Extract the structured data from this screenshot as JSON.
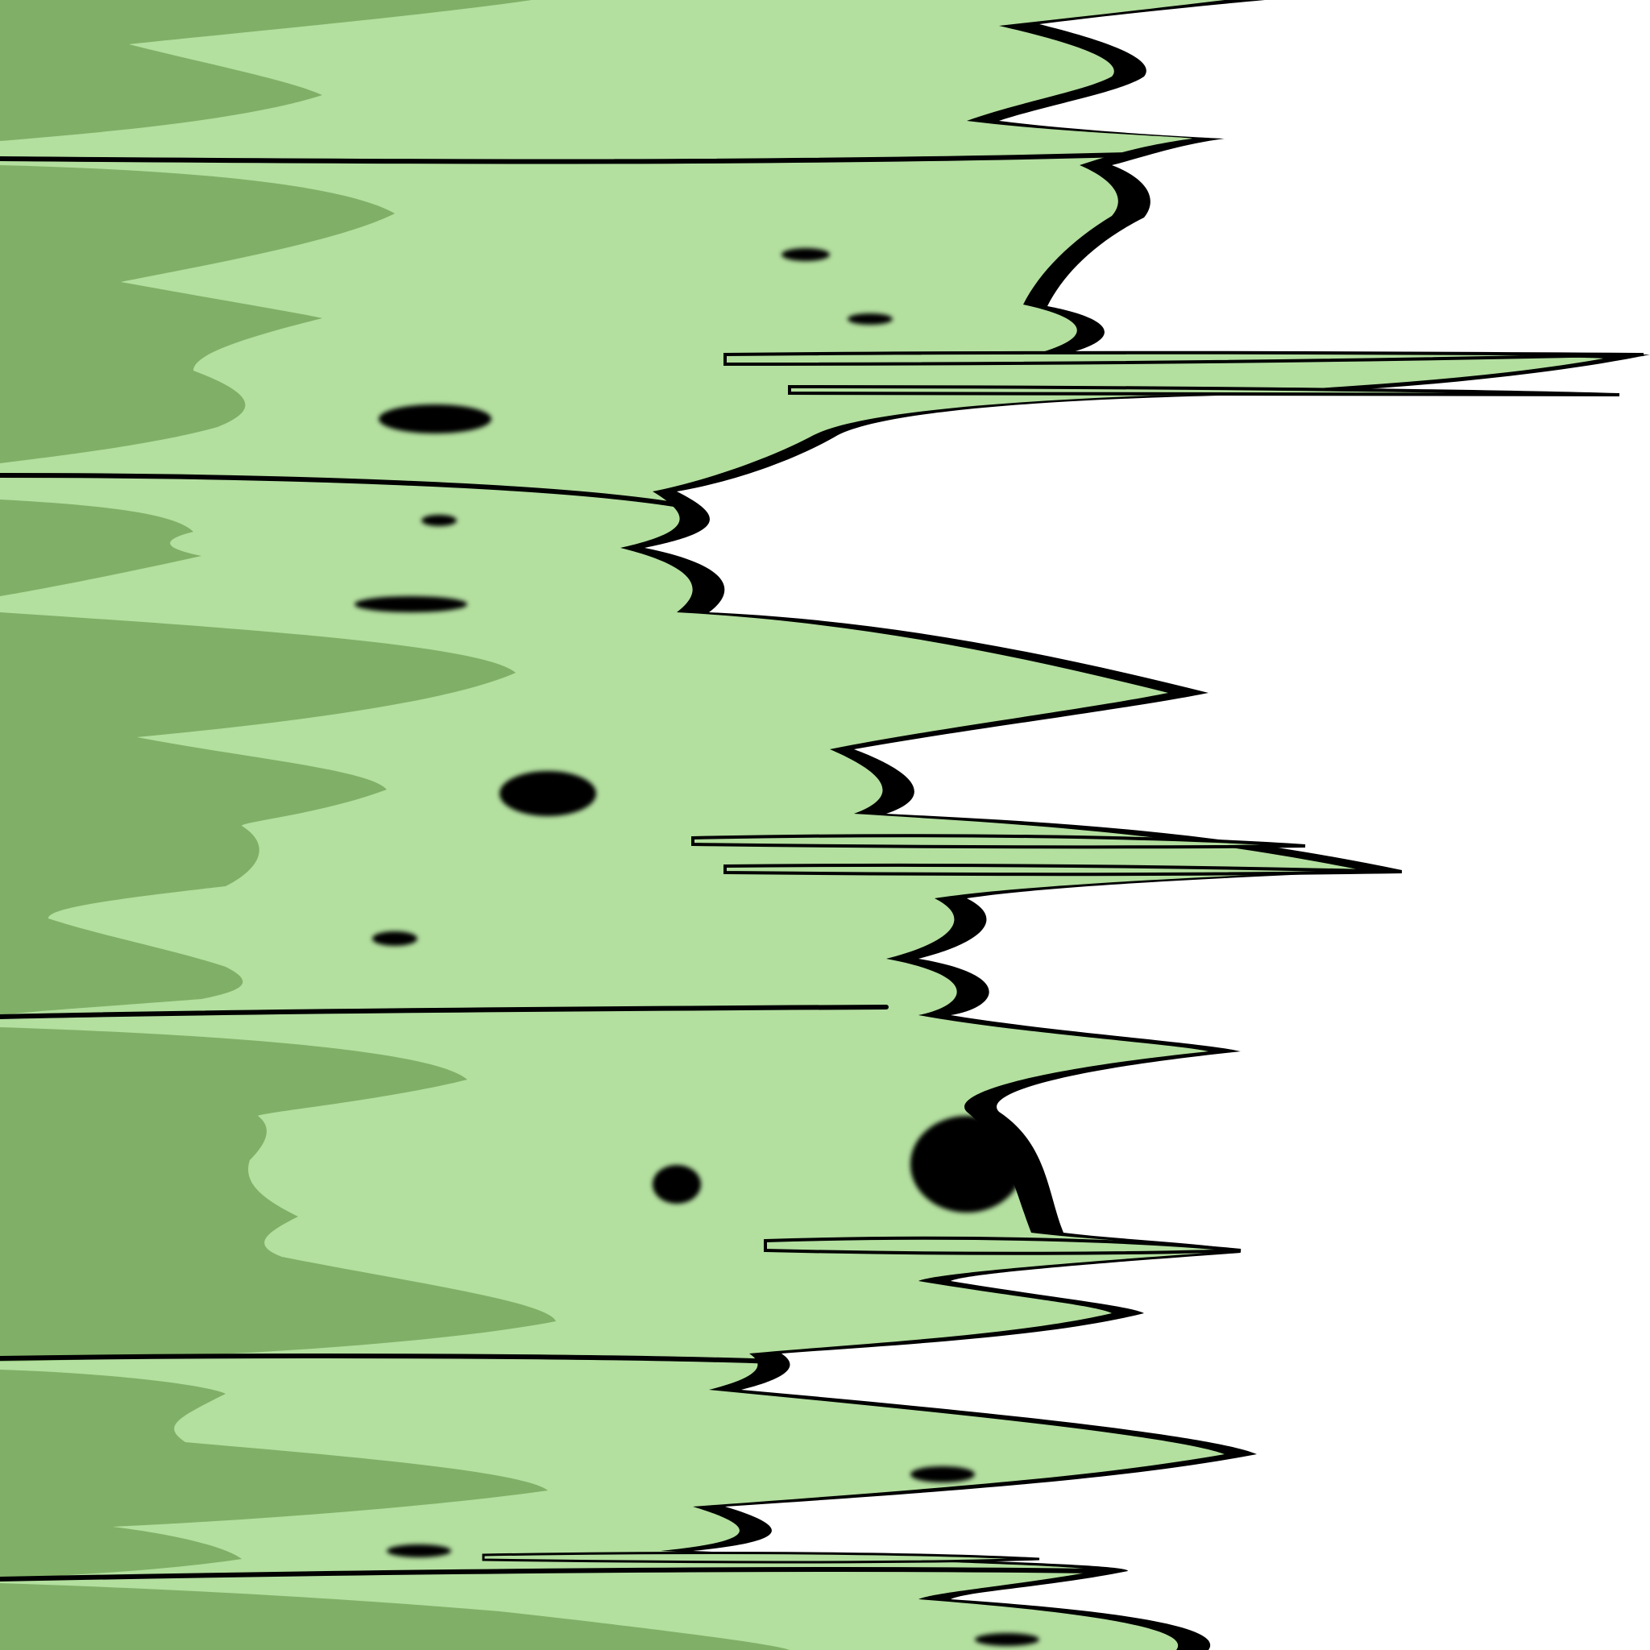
{
  "image": {
    "kind": "abstract-streaked-artwork",
    "colors": {
      "background": "#ffffff",
      "light_green": "#b3df9f",
      "dark_green": "#80b067",
      "outline": "#000000"
    }
  }
}
